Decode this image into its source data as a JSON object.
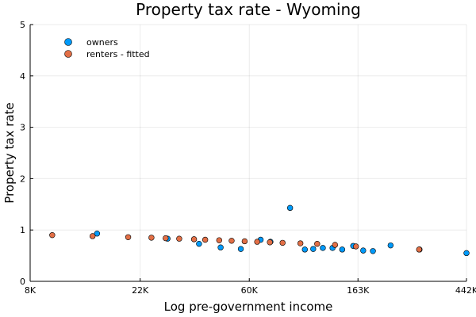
{
  "chart_data": {
    "type": "scatter",
    "title": "Property tax rate - Wyoming",
    "xlabel": "Log pre-government income",
    "ylabel": "Property tax rate",
    "x_scale": "log",
    "xlim": [
      8000,
      442000
    ],
    "ylim": [
      0,
      5
    ],
    "x_ticks": [
      {
        "value": 8000,
        "label": "8K"
      },
      {
        "value": 22000,
        "label": "22K"
      },
      {
        "value": 60000,
        "label": "60K"
      },
      {
        "value": 163000,
        "label": "163K"
      },
      {
        "value": 442000,
        "label": "442K"
      }
    ],
    "y_ticks": [
      {
        "value": 0,
        "label": "0"
      },
      {
        "value": 1,
        "label": "1"
      },
      {
        "value": 2,
        "label": "2"
      },
      {
        "value": 3,
        "label": "3"
      },
      {
        "value": 4,
        "label": "4"
      },
      {
        "value": 5,
        "label": "5"
      }
    ],
    "grid": true,
    "legend_position": "top-left",
    "series": [
      {
        "name": "owners",
        "color": "#009AFA",
        "points": [
          {
            "x": 14800,
            "y": 0.93
          },
          {
            "x": 28300,
            "y": 0.83
          },
          {
            "x": 37800,
            "y": 0.73
          },
          {
            "x": 46100,
            "y": 0.66
          },
          {
            "x": 55500,
            "y": 0.63
          },
          {
            "x": 66600,
            "y": 0.81
          },
          {
            "x": 72900,
            "y": 0.77
          },
          {
            "x": 87300,
            "y": 1.43
          },
          {
            "x": 100000,
            "y": 0.62
          },
          {
            "x": 108000,
            "y": 0.63
          },
          {
            "x": 118000,
            "y": 0.65
          },
          {
            "x": 129000,
            "y": 0.65
          },
          {
            "x": 141000,
            "y": 0.62
          },
          {
            "x": 156000,
            "y": 0.69
          },
          {
            "x": 171000,
            "y": 0.6
          },
          {
            "x": 187000,
            "y": 0.59
          },
          {
            "x": 220000,
            "y": 0.7
          },
          {
            "x": 287000,
            "y": 0.62
          },
          {
            "x": 442000,
            "y": 0.55
          }
        ]
      },
      {
        "name": "renters - fitted",
        "color": "#E26F46",
        "points": [
          {
            "x": 9800,
            "y": 0.9
          },
          {
            "x": 14200,
            "y": 0.88
          },
          {
            "x": 19700,
            "y": 0.86
          },
          {
            "x": 24400,
            "y": 0.85
          },
          {
            "x": 27800,
            "y": 0.84
          },
          {
            "x": 31500,
            "y": 0.83
          },
          {
            "x": 36100,
            "y": 0.82
          },
          {
            "x": 40000,
            "y": 0.81
          },
          {
            "x": 45500,
            "y": 0.8
          },
          {
            "x": 51000,
            "y": 0.79
          },
          {
            "x": 57500,
            "y": 0.78
          },
          {
            "x": 64500,
            "y": 0.77
          },
          {
            "x": 72500,
            "y": 0.76
          },
          {
            "x": 81500,
            "y": 0.75
          },
          {
            "x": 96000,
            "y": 0.74
          },
          {
            "x": 112000,
            "y": 0.73
          },
          {
            "x": 132000,
            "y": 0.71
          },
          {
            "x": 160000,
            "y": 0.68
          },
          {
            "x": 286000,
            "y": 0.62
          }
        ]
      }
    ]
  }
}
